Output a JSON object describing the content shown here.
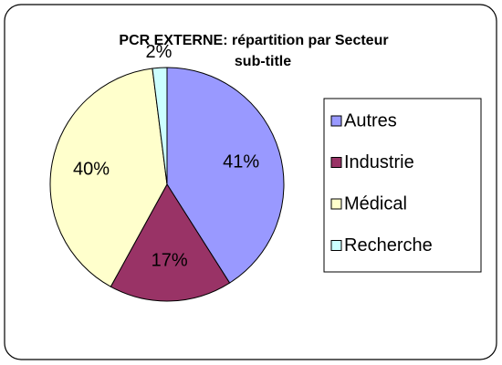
{
  "chart_data": {
    "type": "pie",
    "title": "PCR EXTERNE: répartition par Secteur",
    "subtitle": "sub-title",
    "categories": [
      "Autres",
      "Industrie",
      "Médical",
      "Recherche"
    ],
    "values": [
      41,
      17,
      40,
      2
    ],
    "value_labels": [
      "41%",
      "17%",
      "40%",
      "2%"
    ],
    "colors": [
      "#9999ff",
      "#993366",
      "#ffffcc",
      "#ccffff"
    ],
    "legend": "right"
  }
}
